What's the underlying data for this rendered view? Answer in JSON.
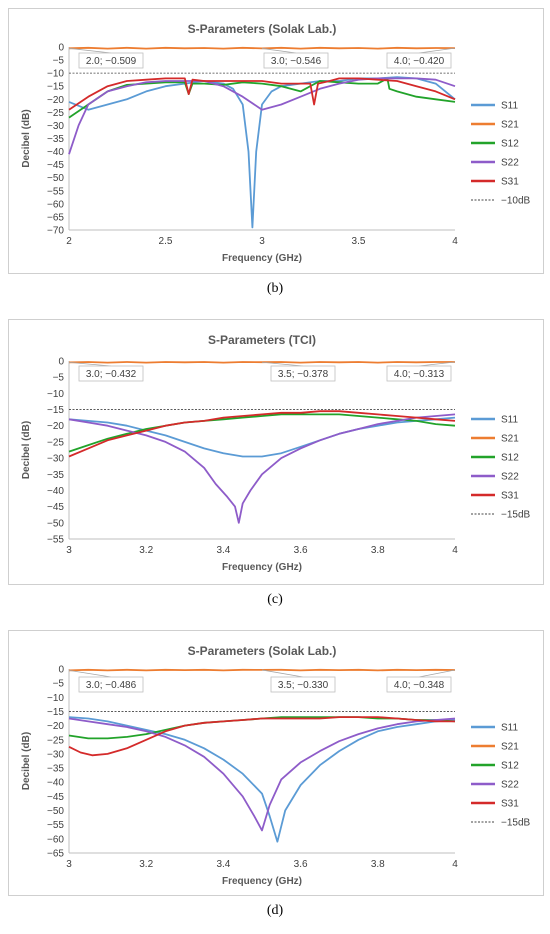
{
  "colors": {
    "S11": "#5b9bd5",
    "S21": "#ed7d31",
    "S12": "#22a32a",
    "S22": "#8e5cc9",
    "S31": "#d42a2a",
    "ref": "#444444"
  },
  "captions": [
    "(b)",
    "(c)",
    "(d)"
  ],
  "chart_data": [
    {
      "type": "line",
      "title": "S-Parameters (Solak Lab.)",
      "xlabel": "Frequency (GHz)",
      "ylabel": "Decibel (dB)",
      "xlim": [
        2,
        4
      ],
      "ylim": [
        -70,
        0
      ],
      "xticks": [
        2,
        2.5,
        3,
        3.5,
        4
      ],
      "xtick_labels": [
        "2",
        "2.5",
        "3",
        "3.5",
        "4"
      ],
      "yticks": [
        0,
        -5,
        -10,
        -15,
        -20,
        -25,
        -30,
        -35,
        -40,
        -45,
        -50,
        -55,
        -60,
        -65,
        -70
      ],
      "ref_level": -10,
      "legend_position": "right",
      "series": [
        {
          "name": "S11",
          "x": [
            2,
            2.1,
            2.2,
            2.3,
            2.4,
            2.5,
            2.6,
            2.7,
            2.8,
            2.85,
            2.9,
            2.93,
            2.95,
            2.97,
            3.0,
            3.05,
            3.1,
            3.2,
            3.3,
            3.4,
            3.5,
            3.6,
            3.7,
            3.8,
            3.9,
            4.0
          ],
          "y": [
            -21,
            -24,
            -22,
            -20,
            -17,
            -15,
            -14,
            -13,
            -14,
            -16,
            -22,
            -40,
            -69,
            -40,
            -22,
            -17,
            -15,
            -14,
            -13,
            -13,
            -12,
            -12,
            -11.5,
            -12,
            -14,
            -20
          ]
        },
        {
          "name": "S21",
          "x": [
            2,
            2.1,
            2.2,
            2.3,
            2.4,
            2.5,
            2.6,
            2.7,
            2.8,
            2.9,
            3.0,
            3.1,
            3.2,
            3.3,
            3.4,
            3.5,
            3.6,
            3.7,
            3.8,
            3.9,
            4.0
          ],
          "y": [
            -0.509,
            -0.3,
            -0.6,
            -0.3,
            -0.6,
            -0.3,
            -0.5,
            -0.4,
            -0.6,
            -0.3,
            -0.546,
            -0.3,
            -0.6,
            -0.3,
            -0.5,
            -0.4,
            -0.6,
            -0.3,
            -0.5,
            -0.4,
            -0.42
          ]
        },
        {
          "name": "S12",
          "x": [
            2,
            2.1,
            2.2,
            2.3,
            2.4,
            2.5,
            2.6,
            2.62,
            2.64,
            2.7,
            2.8,
            2.9,
            3.0,
            3.1,
            3.2,
            3.3,
            3.4,
            3.5,
            3.6,
            3.65,
            3.66,
            3.7,
            3.8,
            3.9,
            4.0
          ],
          "y": [
            -27,
            -22,
            -17,
            -14.5,
            -14,
            -13.5,
            -13.5,
            -18,
            -14,
            -14,
            -14.5,
            -13.5,
            -14,
            -15,
            -17,
            -13,
            -13.5,
            -14,
            -14,
            -12,
            -16,
            -17,
            -19,
            -20,
            -21
          ]
        },
        {
          "name": "S22",
          "x": [
            2,
            2.05,
            2.1,
            2.2,
            2.3,
            2.4,
            2.5,
            2.6,
            2.7,
            2.8,
            2.9,
            3.0,
            3.1,
            3.2,
            3.3,
            3.4,
            3.5,
            3.6,
            3.7,
            3.8,
            3.9,
            4.0
          ],
          "y": [
            -41,
            -30,
            -22,
            -17,
            -15,
            -13.5,
            -13,
            -13,
            -13,
            -15,
            -19,
            -24,
            -22,
            -19,
            -16,
            -14,
            -12.5,
            -12,
            -12,
            -12,
            -12.5,
            -15
          ]
        },
        {
          "name": "S31",
          "x": [
            2,
            2.1,
            2.2,
            2.3,
            2.4,
            2.5,
            2.6,
            2.62,
            2.64,
            2.7,
            2.8,
            2.9,
            3.0,
            3.1,
            3.2,
            3.25,
            3.27,
            3.29,
            3.35,
            3.4,
            3.5,
            3.6,
            3.7,
            3.8,
            3.9,
            4.0
          ],
          "y": [
            -24,
            -19,
            -15,
            -13,
            -12.5,
            -12,
            -12,
            -18,
            -12.5,
            -13,
            -13,
            -13,
            -13,
            -14,
            -14,
            -14,
            -22,
            -14,
            -13,
            -12,
            -12,
            -12.5,
            -13,
            -15,
            -17,
            -20
          ]
        }
      ],
      "annotations": [
        {
          "text": "2.0; −0.509",
          "x": 2.0,
          "y": -0.509
        },
        {
          "text": "3.0; −0.546",
          "x": 3.0,
          "y": -0.546
        },
        {
          "text": "4.0; −0.420",
          "x": 4.0,
          "y": -0.42
        }
      ],
      "legend_ref_label": "−10dB"
    },
    {
      "type": "line",
      "title": "S-Parameters (TCI)",
      "xlabel": "Frequency (GHz)",
      "ylabel": "Decibel (dB)",
      "xlim": [
        3,
        4
      ],
      "ylim": [
        -55,
        0
      ],
      "xticks": [
        3,
        3.2,
        3.4,
        3.6,
        3.8,
        4
      ],
      "xtick_labels": [
        "3",
        "3.2",
        "3.4",
        "3.6",
        "3.8",
        "4"
      ],
      "yticks": [
        0,
        -5,
        -10,
        -15,
        -20,
        -25,
        -30,
        -35,
        -40,
        -45,
        -50,
        -55
      ],
      "ref_level": -15,
      "legend_position": "right",
      "series": [
        {
          "name": "S11",
          "x": [
            3.0,
            3.05,
            3.1,
            3.15,
            3.2,
            3.25,
            3.3,
            3.35,
            3.4,
            3.45,
            3.5,
            3.55,
            3.6,
            3.65,
            3.7,
            3.75,
            3.8,
            3.85,
            3.9,
            3.95,
            4.0
          ],
          "y": [
            -18,
            -18.5,
            -19,
            -20,
            -21.5,
            -23,
            -25,
            -27,
            -28.5,
            -29.5,
            -29.5,
            -28.5,
            -26.5,
            -24.5,
            -22.5,
            -21,
            -20,
            -19,
            -18.5,
            -18,
            -17.5
          ]
        },
        {
          "name": "S21",
          "x": [
            3.0,
            3.05,
            3.1,
            3.15,
            3.2,
            3.25,
            3.3,
            3.35,
            3.4,
            3.45,
            3.5,
            3.55,
            3.6,
            3.65,
            3.7,
            3.75,
            3.8,
            3.85,
            3.9,
            3.95,
            4.0
          ],
          "y": [
            -0.432,
            -0.3,
            -0.5,
            -0.3,
            -0.5,
            -0.3,
            -0.4,
            -0.3,
            -0.5,
            -0.3,
            -0.378,
            -0.3,
            -0.5,
            -0.3,
            -0.4,
            -0.3,
            -0.5,
            -0.3,
            -0.4,
            -0.3,
            -0.313
          ]
        },
        {
          "name": "S12",
          "x": [
            3.0,
            3.05,
            3.1,
            3.15,
            3.2,
            3.25,
            3.3,
            3.35,
            3.4,
            3.45,
            3.5,
            3.55,
            3.6,
            3.65,
            3.7,
            3.75,
            3.8,
            3.85,
            3.9,
            3.95,
            4.0
          ],
          "y": [
            -28,
            -26,
            -24,
            -22.5,
            -21,
            -20,
            -19,
            -18.5,
            -18,
            -17.5,
            -17,
            -16.5,
            -16.5,
            -16.5,
            -16.5,
            -17,
            -17.5,
            -18,
            -18.5,
            -19.5,
            -20
          ]
        },
        {
          "name": "S22",
          "x": [
            3.0,
            3.05,
            3.1,
            3.15,
            3.2,
            3.25,
            3.3,
            3.35,
            3.38,
            3.41,
            3.43,
            3.44,
            3.45,
            3.47,
            3.5,
            3.55,
            3.6,
            3.65,
            3.7,
            3.75,
            3.8,
            3.85,
            3.9,
            3.95,
            4.0
          ],
          "y": [
            -18,
            -19,
            -20,
            -21.5,
            -23,
            -25,
            -28,
            -33,
            -38,
            -42,
            -45,
            -50,
            -44,
            -40,
            -35,
            -30,
            -27,
            -24.5,
            -22.5,
            -21,
            -19.5,
            -18.5,
            -17.5,
            -17,
            -16.5
          ]
        },
        {
          "name": "S31",
          "x": [
            3.0,
            3.05,
            3.1,
            3.15,
            3.2,
            3.25,
            3.3,
            3.35,
            3.4,
            3.45,
            3.5,
            3.55,
            3.6,
            3.65,
            3.7,
            3.75,
            3.8,
            3.85,
            3.9,
            3.95,
            4.0
          ],
          "y": [
            -29.5,
            -27,
            -24.5,
            -23,
            -21.5,
            -20,
            -19,
            -18.5,
            -17.5,
            -17,
            -16.5,
            -16,
            -16,
            -15.5,
            -15.5,
            -16,
            -16.5,
            -17,
            -17.5,
            -18,
            -18.5
          ]
        }
      ],
      "annotations": [
        {
          "text": "3.0; −0.432",
          "x": 3.0,
          "y": -0.432
        },
        {
          "text": "3.5; −0.378",
          "x": 3.5,
          "y": -0.378
        },
        {
          "text": "4.0; −0.313",
          "x": 4.0,
          "y": -0.313
        }
      ],
      "legend_ref_label": "−15dB"
    },
    {
      "type": "line",
      "title": "S-Parameters (Solak Lab.)",
      "xlabel": "Frequency (GHz)",
      "ylabel": "Decibel (dB)",
      "xlim": [
        3,
        4
      ],
      "ylim": [
        -65,
        0
      ],
      "xticks": [
        3,
        3.2,
        3.4,
        3.6,
        3.8,
        4
      ],
      "xtick_labels": [
        "3",
        "3.2",
        "3.4",
        "3.6",
        "3.8",
        "4"
      ],
      "yticks": [
        0,
        -5,
        -10,
        -15,
        -20,
        -25,
        -30,
        -35,
        -40,
        -45,
        -50,
        -55,
        -60,
        -65
      ],
      "ref_level": -15,
      "legend_position": "right",
      "series": [
        {
          "name": "S11",
          "x": [
            3.0,
            3.05,
            3.1,
            3.15,
            3.2,
            3.25,
            3.3,
            3.35,
            3.4,
            3.45,
            3.5,
            3.52,
            3.54,
            3.56,
            3.6,
            3.65,
            3.7,
            3.75,
            3.8,
            3.85,
            3.9,
            3.95,
            4.0
          ],
          "y": [
            -17,
            -17.5,
            -18.5,
            -20,
            -21.5,
            -23,
            -25,
            -28,
            -32,
            -37,
            -44,
            -52,
            -61,
            -50,
            -41,
            -34,
            -29,
            -25,
            -22,
            -20.5,
            -19.5,
            -18.5,
            -18
          ]
        },
        {
          "name": "S21",
          "x": [
            3.0,
            3.05,
            3.1,
            3.15,
            3.2,
            3.25,
            3.3,
            3.35,
            3.4,
            3.45,
            3.5,
            3.55,
            3.6,
            3.65,
            3.7,
            3.75,
            3.8,
            3.85,
            3.9,
            3.95,
            4.0
          ],
          "y": [
            -0.486,
            -0.3,
            -0.5,
            -0.3,
            -0.5,
            -0.3,
            -0.4,
            -0.3,
            -0.5,
            -0.3,
            -0.33,
            -0.3,
            -0.5,
            -0.3,
            -0.4,
            -0.3,
            -0.5,
            -0.3,
            -0.4,
            -0.3,
            -0.348
          ]
        },
        {
          "name": "S12",
          "x": [
            3.0,
            3.05,
            3.1,
            3.15,
            3.2,
            3.25,
            3.3,
            3.35,
            3.4,
            3.45,
            3.5,
            3.55,
            3.6,
            3.65,
            3.7,
            3.75,
            3.8,
            3.85,
            3.9,
            3.95,
            4.0
          ],
          "y": [
            -23.5,
            -24.5,
            -24.5,
            -24,
            -23,
            -21.5,
            -20,
            -19,
            -18.5,
            -18,
            -17.5,
            -17,
            -17,
            -17,
            -17,
            -17,
            -17.5,
            -17.5,
            -18,
            -18,
            -18.5
          ]
        },
        {
          "name": "S22",
          "x": [
            3.0,
            3.05,
            3.1,
            3.15,
            3.2,
            3.25,
            3.3,
            3.35,
            3.4,
            3.45,
            3.48,
            3.5,
            3.52,
            3.55,
            3.6,
            3.65,
            3.7,
            3.75,
            3.8,
            3.85,
            3.9,
            3.95,
            4.0
          ],
          "y": [
            -17.5,
            -18.5,
            -19.5,
            -20.5,
            -22,
            -24,
            -27,
            -31,
            -37,
            -45,
            -52,
            -57,
            -48,
            -39,
            -33,
            -29,
            -25.5,
            -23,
            -21,
            -19.5,
            -18.5,
            -18,
            -17.5
          ]
        },
        {
          "name": "S31",
          "x": [
            3.0,
            3.03,
            3.06,
            3.1,
            3.15,
            3.2,
            3.25,
            3.3,
            3.35,
            3.4,
            3.45,
            3.5,
            3.55,
            3.6,
            3.65,
            3.7,
            3.75,
            3.8,
            3.85,
            3.9,
            3.95,
            4.0
          ],
          "y": [
            -27.5,
            -29.5,
            -30.5,
            -30,
            -28,
            -25,
            -22,
            -20,
            -19,
            -18.5,
            -18,
            -17.5,
            -17.5,
            -17.5,
            -17.5,
            -17,
            -17,
            -17,
            -17.5,
            -18,
            -18.5,
            -18.5
          ]
        }
      ],
      "annotations": [
        {
          "text": "3.0; −0.486",
          "x": 3.0,
          "y": -0.486
        },
        {
          "text": "3.5; −0.330",
          "x": 3.5,
          "y": -0.33
        },
        {
          "text": "4.0; −0.348",
          "x": 4.0,
          "y": -0.348
        }
      ],
      "legend_ref_label": "−15dB"
    }
  ]
}
